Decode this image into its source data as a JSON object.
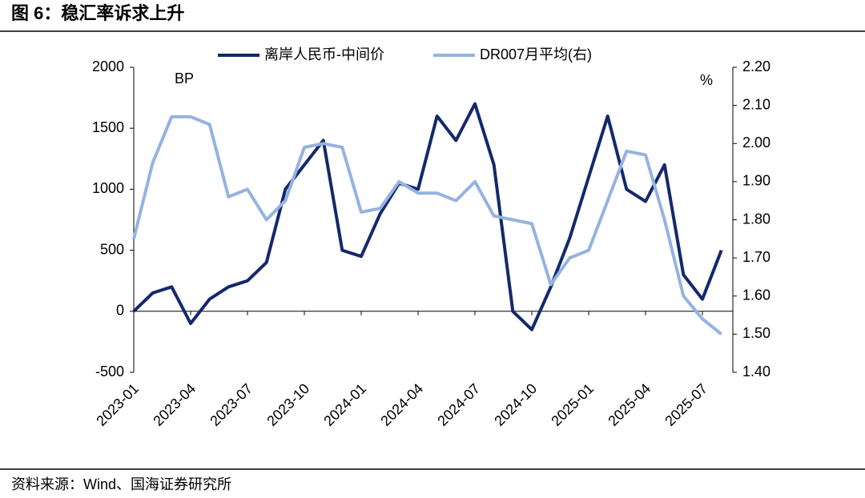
{
  "chart_data": {
    "type": "line",
    "title": "图 6：稳汇率诉求上升",
    "source": "资料来源：Wind、国海证券研究所",
    "ylabel": "BP",
    "y2label": "%",
    "x": [
      "2023-01",
      null,
      null,
      "2023-04",
      null,
      null,
      "2023-07",
      null,
      null,
      "2023-10",
      null,
      null,
      "2024-01",
      null,
      null,
      "2024-04",
      null,
      null,
      "2024-07",
      null,
      null,
      "2024-10",
      null,
      null,
      "2025-01",
      null,
      null,
      "2025-04",
      null,
      null,
      "2025-07",
      null
    ],
    "series": [
      {
        "name": "离岸人民币-中间价",
        "color": "#14296b",
        "values": [
          0,
          150,
          200,
          -100,
          100,
          200,
          250,
          400,
          1000,
          1200,
          1400,
          500,
          450,
          800,
          1050,
          1000,
          1600,
          1400,
          1700,
          1200,
          0,
          -150,
          200,
          600,
          1100,
          1600,
          1000,
          900,
          1200,
          300,
          100,
          500
        ]
      },
      {
        "name": "DR007月平均(右)",
        "color": "#95b3e0",
        "axis": "y2",
        "values": [
          1.75,
          1.95,
          2.07,
          2.07,
          2.05,
          1.86,
          1.88,
          1.8,
          1.85,
          1.99,
          2.0,
          1.99,
          1.82,
          1.83,
          1.9,
          1.87,
          1.87,
          1.85,
          1.9,
          1.81,
          1.8,
          1.79,
          1.63,
          1.7,
          1.72,
          1.85,
          1.98,
          1.97,
          1.8,
          1.6,
          1.54,
          1.5
        ]
      }
    ],
    "ylim": [
      -500,
      2000
    ],
    "yticks": [
      -500,
      0,
      500,
      1000,
      1500,
      2000
    ],
    "y2lim": [
      1.4,
      2.2
    ],
    "y2ticks": [
      {
        "value": 1.4,
        "label": "1.40"
      },
      {
        "value": 1.5,
        "label": "1.50"
      },
      {
        "value": 1.6,
        "label": "1.60"
      },
      {
        "value": 1.7,
        "label": "1.70"
      },
      {
        "value": 1.8,
        "label": "1.80"
      },
      {
        "value": 1.9,
        "label": "1.90"
      },
      {
        "value": 2.0,
        "label": "2.00"
      },
      {
        "value": 2.1,
        "label": "2.10"
      },
      {
        "value": 2.2,
        "label": "2.20"
      }
    ],
    "legend": "top"
  }
}
